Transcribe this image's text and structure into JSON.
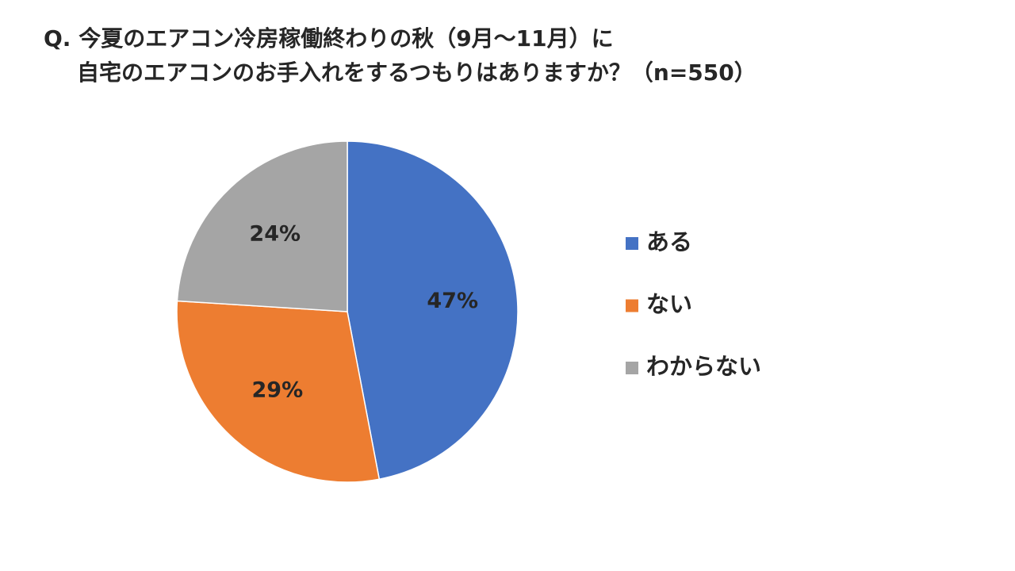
{
  "chart_data": {
    "type": "pie",
    "title": [
      "Q. 今夏のエアコン冷房稼働終わりの秋（9月～11月）に",
      "自宅のエアコンのお手入れをするつもりはありますか？（n=550）"
    ],
    "categories": [
      "ある",
      "ない",
      "わからない"
    ],
    "values": [
      47,
      29,
      24
    ],
    "value_labels": [
      "47%",
      "29%",
      "24%"
    ],
    "colors": [
      "#4472c4",
      "#ed7d31",
      "#a5a5a5"
    ],
    "legend": "right"
  }
}
